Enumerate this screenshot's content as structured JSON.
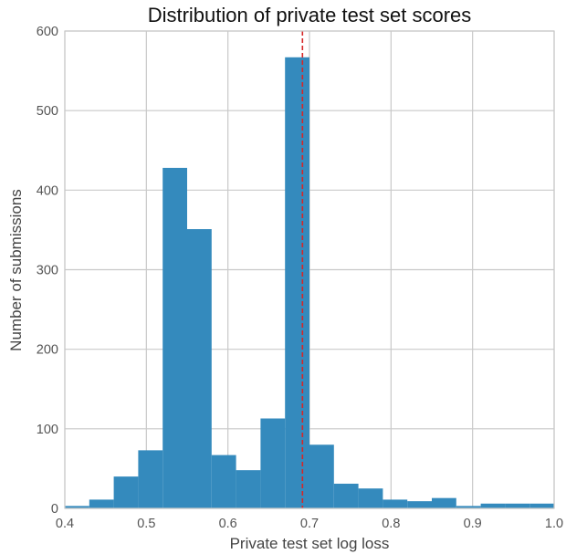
{
  "chart_data": {
    "type": "bar",
    "subtype": "histogram",
    "title": "Distribution of private test set scores",
    "xlabel": "Private test set log loss",
    "ylabel": "Number of submissions",
    "xlim": [
      0.4,
      1.0
    ],
    "ylim": [
      0,
      600
    ],
    "xticks": [
      "0.4",
      "0.5",
      "0.6",
      "0.7",
      "0.8",
      "0.9",
      "1.0"
    ],
    "yticks": [
      "0",
      "100",
      "200",
      "300",
      "400",
      "500",
      "600"
    ],
    "grid": true,
    "bar_color": "#348abd",
    "reference_line": {
      "x": 0.6914,
      "color": "#d62728",
      "style": "dashed"
    },
    "bins": [
      {
        "x0": 0.4,
        "x1": 0.43,
        "count": 3
      },
      {
        "x0": 0.43,
        "x1": 0.46,
        "count": 11
      },
      {
        "x0": 0.46,
        "x1": 0.49,
        "count": 40
      },
      {
        "x0": 0.49,
        "x1": 0.52,
        "count": 73
      },
      {
        "x0": 0.52,
        "x1": 0.55,
        "count": 428
      },
      {
        "x0": 0.55,
        "x1": 0.58,
        "count": 351
      },
      {
        "x0": 0.58,
        "x1": 0.61,
        "count": 67
      },
      {
        "x0": 0.61,
        "x1": 0.64,
        "count": 48
      },
      {
        "x0": 0.64,
        "x1": 0.67,
        "count": 113
      },
      {
        "x0": 0.67,
        "x1": 0.7,
        "count": 567
      },
      {
        "x0": 0.7,
        "x1": 0.73,
        "count": 80
      },
      {
        "x0": 0.73,
        "x1": 0.76,
        "count": 31
      },
      {
        "x0": 0.76,
        "x1": 0.79,
        "count": 25
      },
      {
        "x0": 0.79,
        "x1": 0.82,
        "count": 11
      },
      {
        "x0": 0.82,
        "x1": 0.85,
        "count": 9
      },
      {
        "x0": 0.85,
        "x1": 0.88,
        "count": 13
      },
      {
        "x0": 0.88,
        "x1": 0.91,
        "count": 3
      },
      {
        "x0": 0.91,
        "x1": 0.94,
        "count": 6
      },
      {
        "x0": 0.94,
        "x1": 0.97,
        "count": 6
      },
      {
        "x0": 0.97,
        "x1": 1.0,
        "count": 6
      }
    ]
  }
}
